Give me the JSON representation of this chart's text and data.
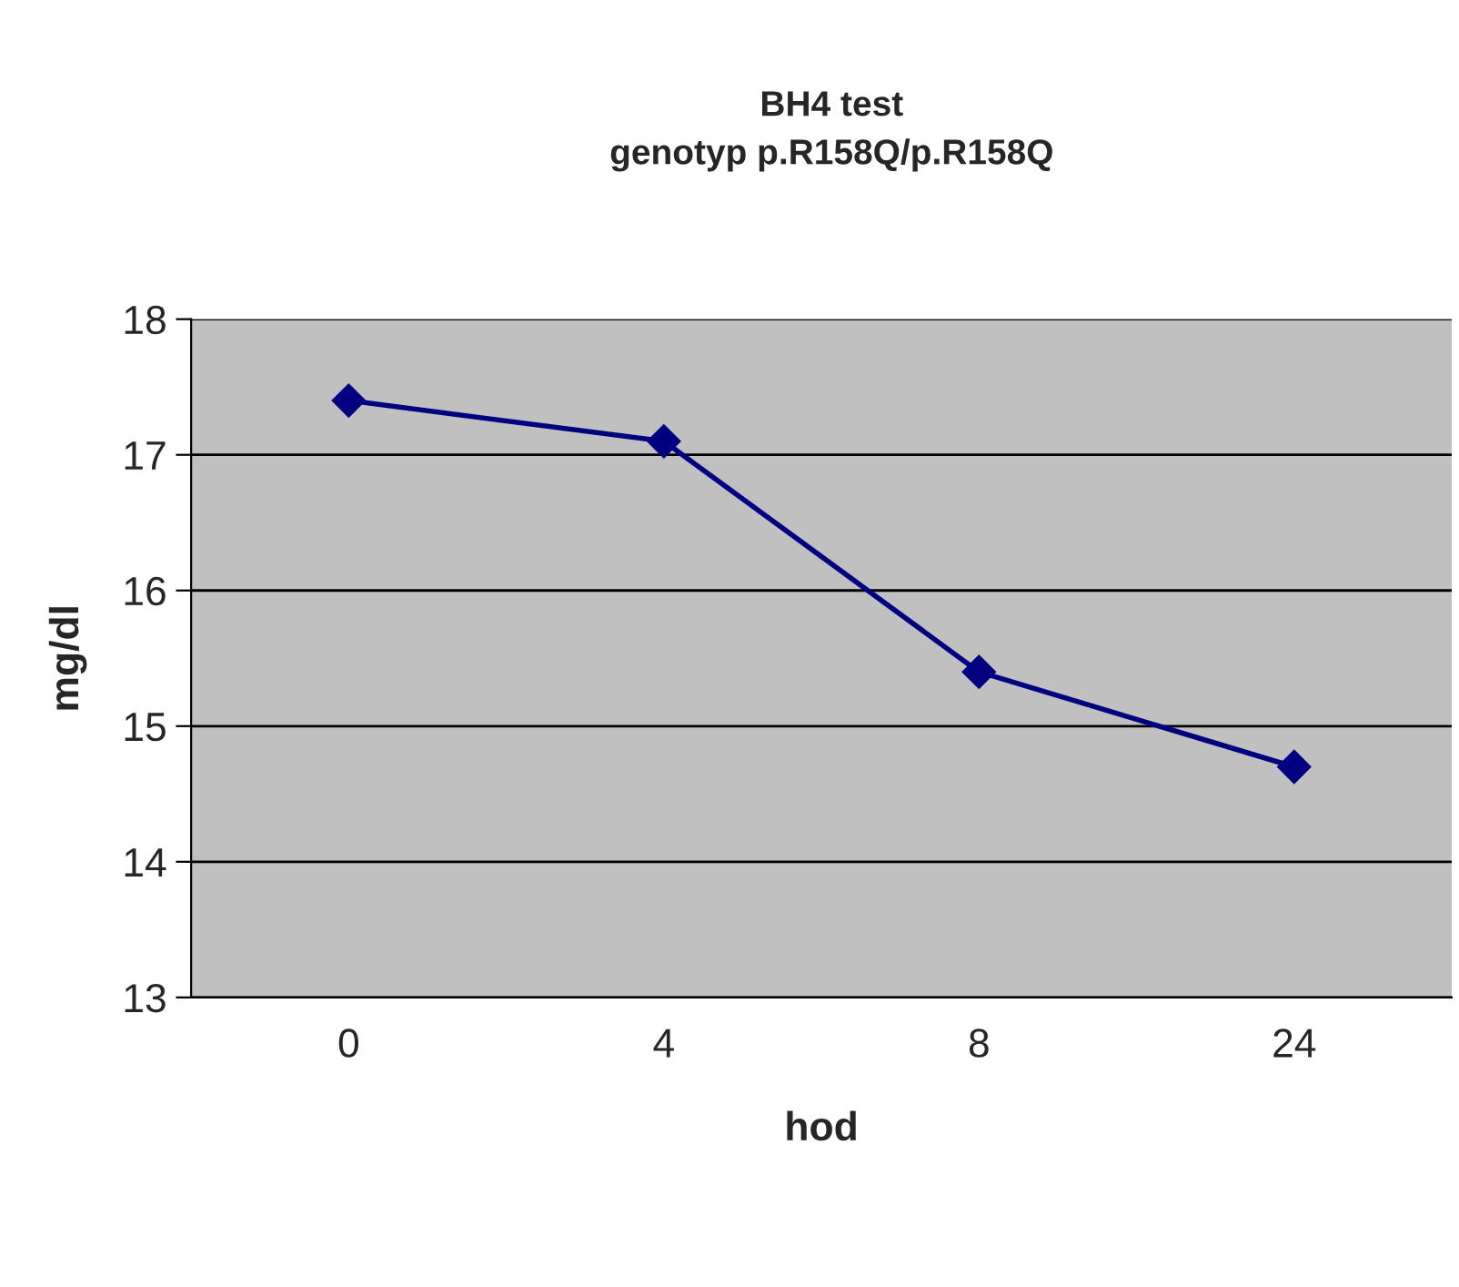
{
  "chart_data": {
    "type": "line",
    "title": "BH4 test\ngenotyp p.R158Q/p.R158Q",
    "xlabel": "hod",
    "ylabel": "mg/dl",
    "categories": [
      "0",
      "4",
      "8",
      "24"
    ],
    "series": [
      {
        "color": "#000080",
        "values": [
          17.4,
          17.1,
          15.4,
          14.7
        ]
      }
    ],
    "ylim": [
      13,
      18
    ],
    "yticks": [
      13,
      14,
      15,
      16,
      17,
      18
    ],
    "grid": "y",
    "marker": "diamond",
    "line_style": "solid",
    "legend": false
  }
}
